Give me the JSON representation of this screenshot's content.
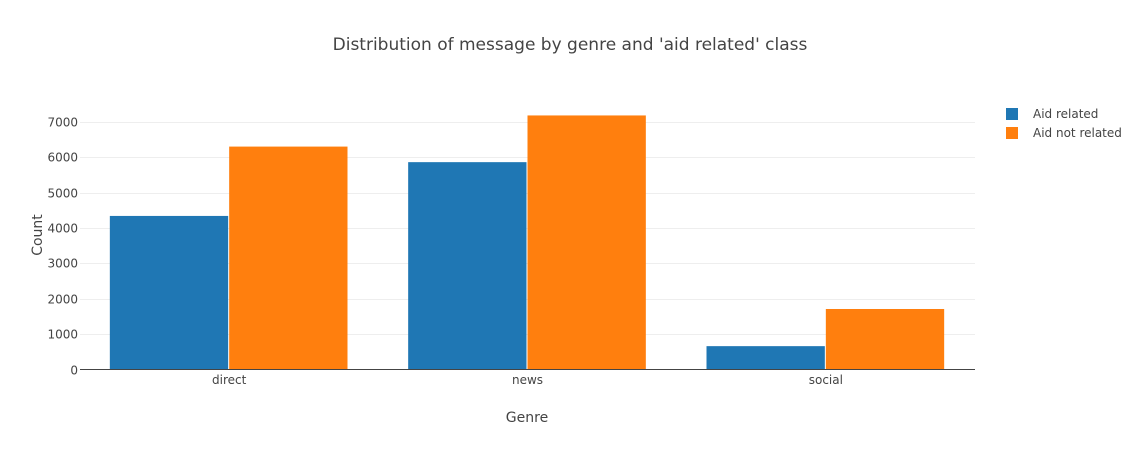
{
  "chart_data": {
    "type": "bar",
    "title": "Distribution of message by genre and 'aid related' class",
    "xlabel": "Genre",
    "ylabel": "Count",
    "categories": [
      "direct",
      "news",
      "social"
    ],
    "series": [
      {
        "name": "Aid related",
        "color": "#1f77b4",
        "values": [
          4340,
          5860,
          660
        ]
      },
      {
        "name": "Aid not related",
        "color": "#ff7f0e",
        "values": [
          6300,
          7180,
          1710
        ]
      }
    ],
    "yticks": [
      0,
      1000,
      2000,
      3000,
      4000,
      5000,
      6000,
      7000
    ],
    "ylim": [
      0,
      7560
    ],
    "grid": true,
    "legend_position": "top-right"
  }
}
